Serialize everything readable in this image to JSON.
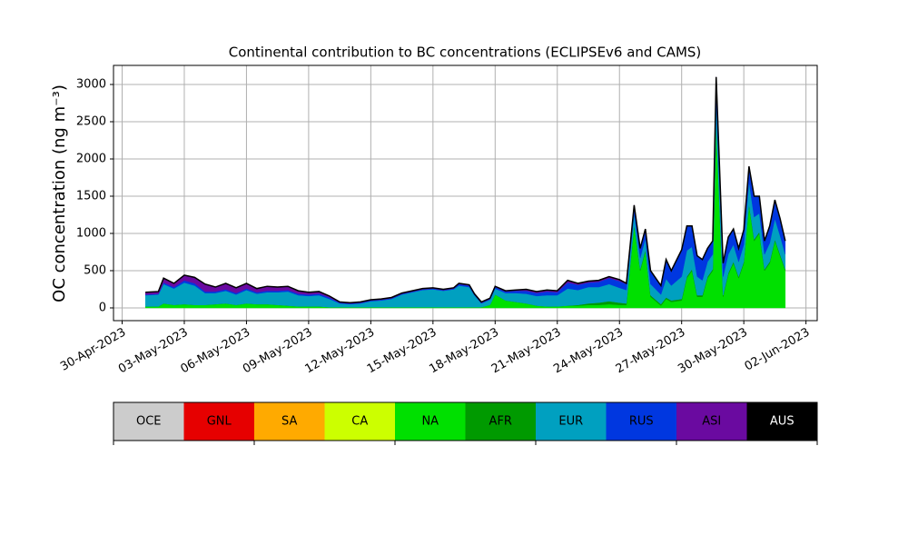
{
  "chart_data": {
    "type": "stacked_area",
    "title": "Continental contribution to BC concentrations (ECLIPSEv6 and CAMS)",
    "y_label": "OC concentration (ng m⁻³)",
    "grid": true,
    "xlim": [
      "2023-04-29T14:00",
      "2023-06-02T13:00"
    ],
    "ylim": [
      -171,
      3256
    ],
    "yticks": [
      0,
      500,
      1000,
      1500,
      2000,
      2500,
      3000
    ],
    "xticks": [
      {
        "value": "2023-04-30T00:00",
        "label": "30-Apr-2023"
      },
      {
        "value": "2023-05-03T00:00",
        "label": "03-May-2023"
      },
      {
        "value": "2023-05-06T00:00",
        "label": "06-May-2023"
      },
      {
        "value": "2023-05-09T00:00",
        "label": "09-May-2023"
      },
      {
        "value": "2023-05-12T00:00",
        "label": "12-May-2023"
      },
      {
        "value": "2023-05-15T00:00",
        "label": "15-May-2023"
      },
      {
        "value": "2023-05-18T00:00",
        "label": "18-May-2023"
      },
      {
        "value": "2023-05-21T00:00",
        "label": "21-May-2023"
      },
      {
        "value": "2023-05-24T00:00",
        "label": "24-May-2023"
      },
      {
        "value": "2023-05-27T00:00",
        "label": "27-May-2023"
      },
      {
        "value": "2023-05-30T00:00",
        "label": "30-May-2023"
      },
      {
        "value": "2023-06-02T00:00",
        "label": "02-Jun-2023"
      }
    ],
    "x": [
      "2023-05-01T03:00",
      "2023-05-01T18:00",
      "2023-05-02T00:00",
      "2023-05-02T12:00",
      "2023-05-03T00:00",
      "2023-05-03T12:00",
      "2023-05-04T00:00",
      "2023-05-04T12:00",
      "2023-05-05T00:00",
      "2023-05-05T12:00",
      "2023-05-06T00:00",
      "2023-05-06T12:00",
      "2023-05-07T00:00",
      "2023-05-07T12:00",
      "2023-05-08T00:00",
      "2023-05-08T12:00",
      "2023-05-09T00:00",
      "2023-05-09T12:00",
      "2023-05-10T00:00",
      "2023-05-10T12:00",
      "2023-05-11T00:00",
      "2023-05-11T12:00",
      "2023-05-12T00:00",
      "2023-05-12T12:00",
      "2023-05-13T00:00",
      "2023-05-13T12:00",
      "2023-05-14T00:00",
      "2023-05-14T12:00",
      "2023-05-15T00:00",
      "2023-05-15T12:00",
      "2023-05-16T00:00",
      "2023-05-16T06:00",
      "2023-05-16T18:00",
      "2023-05-17T00:00",
      "2023-05-17T08:00",
      "2023-05-17T18:00",
      "2023-05-18T00:00",
      "2023-05-18T12:00",
      "2023-05-19T00:00",
      "2023-05-19T12:00",
      "2023-05-20T00:00",
      "2023-05-20T12:00",
      "2023-05-21T00:00",
      "2023-05-21T12:00",
      "2023-05-22T00:00",
      "2023-05-22T12:00",
      "2023-05-23T00:00",
      "2023-05-23T12:00",
      "2023-05-24T00:00",
      "2023-05-24T08:00",
      "2023-05-24T17:00",
      "2023-05-25T00:00",
      "2023-05-25T06:00",
      "2023-05-25T12:00",
      "2023-05-26T00:00",
      "2023-05-26T06:00",
      "2023-05-26T12:00",
      "2023-05-27T00:00",
      "2023-05-27T06:00",
      "2023-05-27T12:00",
      "2023-05-27T18:00",
      "2023-05-28T00:00",
      "2023-05-28T06:00",
      "2023-05-28T12:00",
      "2023-05-28T16:00",
      "2023-05-29T00:00",
      "2023-05-29T06:00",
      "2023-05-29T12:00",
      "2023-05-29T18:00",
      "2023-05-30T00:00",
      "2023-05-30T06:00",
      "2023-05-30T12:00",
      "2023-05-30T18:00",
      "2023-05-31T00:00",
      "2023-05-31T06:00",
      "2023-05-31T12:00",
      "2023-05-31T18:00",
      "2023-06-01T00:00"
    ],
    "series": [
      {
        "name": "NA",
        "color": "#00e000",
        "values": [
          20,
          20,
          60,
          40,
          50,
          40,
          40,
          50,
          60,
          40,
          60,
          50,
          50,
          40,
          30,
          20,
          20,
          20,
          10,
          10,
          10,
          10,
          10,
          10,
          10,
          10,
          10,
          10,
          10,
          10,
          10,
          10,
          10,
          10,
          10,
          40,
          180,
          100,
          80,
          60,
          30,
          20,
          20,
          30,
          30,
          40,
          40,
          50,
          40,
          40,
          1100,
          500,
          760,
          150,
          30,
          120,
          80,
          100,
          400,
          500,
          150,
          150,
          400,
          500,
          2470,
          150,
          450,
          600,
          400,
          600,
          1380,
          900,
          1000,
          500,
          600,
          900,
          700,
          500
        ]
      },
      {
        "name": "AFR",
        "color": "#009a00",
        "values": [
          0,
          0,
          0,
          0,
          0,
          0,
          0,
          0,
          0,
          0,
          0,
          0,
          0,
          0,
          0,
          0,
          0,
          0,
          0,
          0,
          0,
          0,
          0,
          0,
          0,
          0,
          0,
          0,
          0,
          0,
          0,
          0,
          0,
          0,
          0,
          0,
          0,
          0,
          0,
          0,
          0,
          0,
          0,
          0,
          10,
          20,
          30,
          40,
          30,
          20,
          20,
          20,
          20,
          20,
          20,
          20,
          20,
          20,
          20,
          20,
          20,
          20,
          20,
          20,
          20,
          20,
          20,
          20,
          20,
          20,
          20,
          20,
          20,
          20,
          20,
          20,
          20,
          20
        ]
      },
      {
        "name": "EUR",
        "color": "#00a0c0",
        "values": [
          150,
          160,
          260,
          220,
          290,
          260,
          160,
          150,
          170,
          140,
          180,
          140,
          160,
          170,
          190,
          150,
          140,
          150,
          110,
          50,
          40,
          50,
          80,
          90,
          110,
          170,
          200,
          230,
          240,
          220,
          240,
          290,
          270,
          160,
          50,
          70,
          80,
          100,
          120,
          130,
          130,
          150,
          150,
          230,
          200,
          220,
          210,
          230,
          200,
          180,
          150,
          150,
          150,
          150,
          130,
          250,
          200,
          300,
          350,
          300,
          250,
          200,
          200,
          200,
          320,
          250,
          250,
          230,
          200,
          230,
          300,
          300,
          250,
          200,
          250,
          280,
          250,
          200
        ]
      },
      {
        "name": "RUS",
        "color": "#0037e0",
        "values": [
          10,
          10,
          20,
          20,
          30,
          30,
          20,
          20,
          20,
          20,
          20,
          20,
          20,
          20,
          20,
          20,
          20,
          20,
          20,
          10,
          10,
          10,
          10,
          10,
          10,
          10,
          10,
          10,
          10,
          10,
          10,
          20,
          20,
          10,
          10,
          10,
          20,
          20,
          30,
          40,
          40,
          50,
          40,
          80,
          70,
          60,
          70,
          80,
          90,
          80,
          100,
          120,
          120,
          170,
          110,
          250,
          190,
          350,
          330,
          280,
          280,
          280,
          180,
          180,
          290,
          180,
          230,
          210,
          180,
          200,
          200,
          280,
          230,
          180,
          230,
          250,
          230,
          180
        ]
      },
      {
        "name": "ASI",
        "color": "#6a0aa0",
        "values": [
          30,
          30,
          60,
          50,
          70,
          80,
          100,
          60,
          80,
          70,
          70,
          50,
          60,
          50,
          50,
          40,
          30,
          30,
          20,
          10,
          10,
          10,
          10,
          10,
          10,
          10,
          10,
          10,
          10,
          10,
          10,
          10,
          10,
          10,
          10,
          10,
          10,
          10,
          10,
          20,
          20,
          20,
          20,
          30,
          20,
          20,
          20,
          20,
          20,
          10,
          10,
          10,
          10,
          10,
          10,
          10,
          10,
          10,
          0,
          0,
          0,
          0,
          0,
          0,
          0,
          0,
          0,
          0,
          0,
          0,
          0,
          0,
          0,
          0,
          0,
          0,
          0,
          0
        ]
      }
    ],
    "colorbar": [
      {
        "name": "OCE",
        "color": "#cccccc"
      },
      {
        "name": "GNL",
        "color": "#e60000"
      },
      {
        "name": "SA",
        "color": "#ffaa00"
      },
      {
        "name": "CA",
        "color": "#ccff00"
      },
      {
        "name": "NA",
        "color": "#00e000"
      },
      {
        "name": "AFR",
        "color": "#009a00"
      },
      {
        "name": "EUR",
        "color": "#00a0c0"
      },
      {
        "name": "RUS",
        "color": "#0037e0"
      },
      {
        "name": "ASI",
        "color": "#6a0aa0"
      },
      {
        "name": "AUS",
        "color": "#000000"
      }
    ]
  }
}
